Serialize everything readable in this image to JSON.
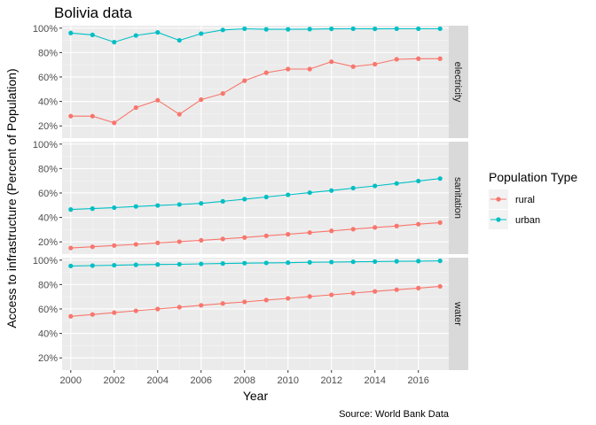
{
  "chart_data": {
    "type": "line",
    "title": "Bolivia data",
    "xlabel": "Year",
    "ylabel": "Access to infrastructure (Percent of Population)",
    "caption": "Source: World Bank Data",
    "xlim": [
      1999.6,
      2017.4
    ],
    "ylim": [
      10,
      102
    ],
    "x_ticks": [
      2000,
      2002,
      2004,
      2006,
      2008,
      2010,
      2012,
      2014,
      2016
    ],
    "x_tick_labels": [
      "2000",
      "2002",
      "2004",
      "2006",
      "2008",
      "2010",
      "2012",
      "2014",
      "2016"
    ],
    "y_ticks": [
      20,
      40,
      60,
      80,
      100
    ],
    "y_tick_labels": [
      "20%",
      "40%",
      "60%",
      "80%",
      "100%"
    ],
    "legend": {
      "title": "Population Type",
      "placement": "right",
      "items": [
        {
          "label": "rural",
          "color": "#F8766D"
        },
        {
          "label": "urban",
          "color": "#00BFC4"
        }
      ]
    },
    "x": [
      2000,
      2001,
      2002,
      2003,
      2004,
      2005,
      2006,
      2007,
      2008,
      2009,
      2010,
      2011,
      2012,
      2013,
      2014,
      2015,
      2016,
      2017
    ],
    "panels": [
      {
        "facet": "electricity",
        "series": [
          {
            "name": "rural",
            "color": "#F8766D",
            "values": [
              28,
              28,
              22.5,
              35,
              41,
              29.5,
              41.5,
              46.5,
              57,
              63.5,
              66.5,
              66.5,
              72.5,
              68.5,
              70.5,
              74.5,
              75,
              75
            ]
          },
          {
            "name": "urban",
            "color": "#00BFC4",
            "values": [
              96,
              94.5,
              88.5,
              94,
              96.5,
              90,
              95.5,
              98.5,
              99.5,
              99,
              99,
              99.2,
              99.4,
              99.5,
              99.4,
              99.5,
              99.5,
              99.5
            ]
          }
        ]
      },
      {
        "facet": "sanitation",
        "series": [
          {
            "name": "rural",
            "color": "#F8766D",
            "values": [
              15,
              16,
              17,
              18,
              19.2,
              20.2,
              21.3,
              22.4,
              23.6,
              25,
              26.2,
              27.6,
              29,
              30.4,
              31.8,
              33,
              34.5,
              35.8
            ]
          },
          {
            "name": "urban",
            "color": "#00BFC4",
            "values": [
              46.5,
              47.2,
              48,
              49,
              49.8,
              50.6,
              51.5,
              53.2,
              55,
              56.7,
              58.5,
              60.3,
              62,
              64,
              65.8,
              67.8,
              69.8,
              71.8
            ]
          }
        ]
      },
      {
        "facet": "water",
        "series": [
          {
            "name": "rural",
            "color": "#F8766D",
            "values": [
              54,
              55.5,
              57,
              58.5,
              60,
              61.5,
              63,
              64.5,
              65.8,
              67.3,
              68.7,
              70.2,
              71.6,
              73,
              74.4,
              75.8,
              77.1,
              78.5
            ]
          },
          {
            "name": "urban",
            "color": "#00BFC4",
            "values": [
              95.2,
              95.5,
              95.8,
              96.1,
              96.4,
              96.6,
              96.9,
              97.2,
              97.5,
              97.7,
              97.9,
              98.2,
              98.4,
              98.6,
              98.8,
              99,
              99.2,
              99.4
            ]
          }
        ]
      }
    ]
  }
}
